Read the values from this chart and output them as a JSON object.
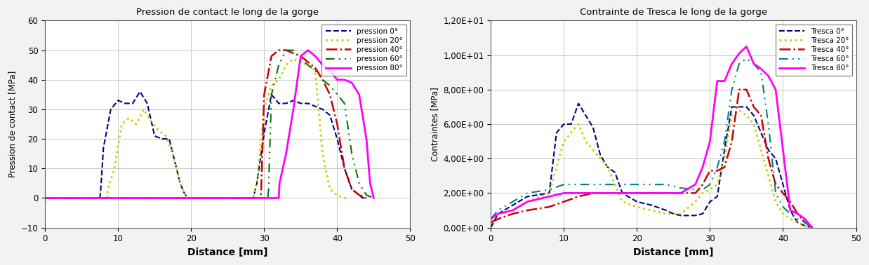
{
  "left_title": "Pression de contact le long de la gorge",
  "left_ylabel": "Pression de contact [MPa]",
  "left_xlabel": "Distance [mm]",
  "left_xlim": [
    0,
    50
  ],
  "left_ylim": [
    -10,
    60
  ],
  "left_yticks": [
    -10,
    0,
    10,
    20,
    30,
    40,
    50,
    60
  ],
  "left_xticks": [
    0,
    10,
    20,
    30,
    40,
    50
  ],
  "right_title": "Contrainte de Tresca le long de la gorge",
  "right_ylabel": "Contraintes [MPa]",
  "right_xlabel": "Distance [mm]",
  "right_xlim": [
    0,
    50
  ],
  "right_ylim": [
    0,
    12
  ],
  "right_yticks": [
    0,
    2,
    4,
    6,
    8,
    10,
    12
  ],
  "right_xticks": [
    0,
    10,
    20,
    30,
    40,
    50
  ],
  "pression_0": {
    "x": [
      0,
      7.5,
      7.6,
      8.0,
      9.0,
      10.0,
      11.0,
      12.0,
      13.0,
      14.0,
      15.0,
      16.0,
      17.0,
      17.5,
      18.0,
      18.5,
      19.0,
      19.5,
      28.5,
      29.0,
      30.0,
      31.0,
      32.0,
      33.0,
      34.0,
      35.0,
      36.0,
      37.0,
      38.0,
      39.0,
      40.0,
      41.0,
      42.0,
      43.0,
      43.5,
      44.0
    ],
    "y": [
      0,
      0,
      2,
      17,
      30,
      33,
      32,
      32,
      36,
      32,
      21,
      20,
      20,
      15,
      10,
      5,
      2,
      0,
      0,
      5,
      22,
      35,
      32,
      32,
      33,
      32,
      32,
      31,
      30,
      28,
      20,
      10,
      3,
      1,
      0,
      0
    ],
    "color": "#000080",
    "linestyle": "--",
    "linewidth": 1.5,
    "label": "pression 0°"
  },
  "pression_20": {
    "x": [
      0,
      8.5,
      8.6,
      9.5,
      10.5,
      11.5,
      12.5,
      13.5,
      14.5,
      15.5,
      16.5,
      17.5,
      18.0,
      18.5,
      19.0,
      19.5,
      28.5,
      29.0,
      30.0,
      31.0,
      32.0,
      33.0,
      34.0,
      35.0,
      36.0,
      37.0,
      38.0,
      39.0,
      40.0,
      40.5,
      41.0,
      41.5
    ],
    "y": [
      0,
      0,
      3,
      10,
      25,
      27,
      25,
      30,
      26,
      23,
      21,
      15,
      10,
      5,
      2,
      0,
      0,
      5,
      30,
      38,
      40,
      45,
      47,
      46,
      45,
      43,
      15,
      3,
      1,
      0.5,
      0,
      0
    ],
    "color": "#cccc00",
    "linestyle": ":",
    "linewidth": 2.0,
    "label": "pression 20°"
  },
  "pression_40": {
    "x": [
      0,
      29.5,
      29.6,
      30.0,
      31.0,
      32.0,
      33.0,
      34.0,
      35.0,
      36.0,
      37.0,
      38.0,
      39.0,
      40.0,
      41.0,
      42.0,
      43.0,
      43.5,
      44.0
    ],
    "y": [
      0,
      0,
      3,
      35,
      48,
      50,
      50,
      49,
      48,
      46,
      44,
      40,
      35,
      25,
      10,
      3,
      1,
      0.5,
      0
    ],
    "color": "#cc0000",
    "linestyle": "-.",
    "linewidth": 1.8,
    "label": "pression 40°"
  },
  "pression_60": {
    "x": [
      0,
      30.5,
      30.6,
      31.0,
      32.0,
      33.0,
      34.0,
      35.0,
      36.0,
      37.0,
      38.0,
      39.0,
      40.0,
      41.0,
      42.0,
      43.0,
      44.0,
      44.5,
      45.0
    ],
    "y": [
      0,
      0,
      3,
      35,
      45,
      50,
      50,
      47,
      45,
      43,
      40,
      38,
      35,
      32,
      15,
      5,
      1,
      0.5,
      0
    ],
    "color": "#007700",
    "linestyle": "--",
    "linewidth": 1.5,
    "label": "pression 60°",
    "dashes": [
      6,
      3,
      1,
      3,
      1,
      3
    ]
  },
  "pression_80": {
    "x": [
      0,
      32.0,
      32.1,
      33.0,
      34.0,
      35.0,
      36.0,
      37.0,
      38.0,
      39.0,
      40.0,
      41.0,
      42.0,
      43.0,
      44.0,
      44.5,
      45.0
    ],
    "y": [
      0,
      0,
      5,
      15,
      30,
      48,
      50,
      48,
      45,
      43,
      40,
      40,
      39,
      35,
      20,
      5,
      0
    ],
    "color": "#ff00ff",
    "linestyle": "-",
    "linewidth": 2.0,
    "label": "pression 80°"
  },
  "tresca_0": {
    "x": [
      0,
      1,
      3,
      5,
      8,
      9,
      10,
      11,
      12,
      13,
      14,
      15,
      16,
      17,
      18,
      20,
      22,
      24,
      25,
      26,
      27,
      28,
      29,
      30,
      31,
      32,
      33,
      34,
      35,
      36,
      37,
      38,
      39,
      40,
      41,
      42,
      43,
      44
    ],
    "y": [
      0,
      0.8,
      1.3,
      1.8,
      2.0,
      5.5,
      6.0,
      6.0,
      7.2,
      6.5,
      5.8,
      4.2,
      3.5,
      3.2,
      2.0,
      1.5,
      1.3,
      1.0,
      0.8,
      0.7,
      0.7,
      0.7,
      0.8,
      1.5,
      1.8,
      4.5,
      7.0,
      7.0,
      7.0,
      6.5,
      5.5,
      4.5,
      4.0,
      2.5,
      1.0,
      0.3,
      0.1,
      0
    ],
    "color": "#000080",
    "linestyle": "--",
    "linewidth": 1.5,
    "label": "Tresca 0°"
  },
  "tresca_20": {
    "x": [
      0,
      1,
      3,
      5,
      8,
      9,
      10,
      11,
      12,
      13,
      14,
      15,
      16,
      17,
      18,
      20,
      22,
      24,
      26,
      28,
      29,
      30,
      31,
      32,
      33,
      34,
      35,
      36,
      37,
      38,
      39,
      40,
      41,
      42,
      43,
      44
    ],
    "y": [
      0.5,
      0.8,
      1.0,
      1.5,
      2.0,
      3.5,
      5.0,
      5.5,
      6.0,
      5.0,
      4.5,
      4.0,
      3.5,
      2.5,
      1.5,
      1.2,
      1.0,
      0.8,
      0.8,
      1.5,
      2.0,
      2.2,
      2.5,
      4.0,
      6.5,
      6.8,
      6.5,
      6.0,
      4.5,
      3.0,
      1.5,
      0.8,
      0.5,
      0.3,
      0.1,
      0
    ],
    "color": "#cccc00",
    "linestyle": ":",
    "linewidth": 2.0,
    "label": "Tresca 20°"
  },
  "tresca_40": {
    "x": [
      0,
      1,
      3,
      5,
      8,
      10,
      12,
      14,
      16,
      18,
      20,
      22,
      24,
      26,
      28,
      29,
      30,
      31,
      32,
      33,
      34,
      35,
      36,
      37,
      38,
      39,
      40,
      41,
      42,
      43,
      44
    ],
    "y": [
      0.3,
      0.5,
      0.8,
      1.0,
      1.2,
      1.5,
      1.8,
      2.0,
      2.0,
      2.0,
      2.0,
      2.0,
      2.0,
      2.0,
      2.0,
      2.5,
      3.3,
      3.3,
      3.5,
      5.0,
      8.0,
      8.0,
      7.0,
      6.5,
      4.0,
      2.5,
      2.0,
      1.5,
      0.8,
      0.3,
      0
    ],
    "color": "#cc0000",
    "linestyle": "-.",
    "linewidth": 1.8,
    "label": "Tresca 40°"
  },
  "tresca_60": {
    "x": [
      0,
      1,
      3,
      5,
      8,
      10,
      12,
      14,
      16,
      18,
      20,
      22,
      24,
      26,
      28,
      29,
      30,
      31,
      32,
      33,
      34,
      35,
      36,
      37,
      38,
      39,
      40,
      41,
      42,
      43,
      44
    ],
    "y": [
      0.5,
      1.0,
      1.5,
      2.0,
      2.2,
      2.5,
      2.5,
      2.5,
      2.5,
      2.5,
      2.5,
      2.5,
      2.5,
      2.3,
      2.2,
      2.2,
      2.5,
      3.5,
      5.0,
      8.0,
      9.5,
      9.8,
      9.5,
      9.0,
      6.0,
      2.0,
      1.2,
      0.8,
      0.5,
      0.3,
      0
    ],
    "color": "#008080",
    "linestyle": "--",
    "linewidth": 1.5,
    "label": "Tresca 60°",
    "dashes": [
      6,
      3,
      1,
      3,
      1,
      3
    ]
  },
  "tresca_80": {
    "x": [
      0,
      1,
      3,
      5,
      8,
      10,
      12,
      14,
      16,
      18,
      20,
      22,
      24,
      26,
      28,
      29,
      30,
      31,
      32,
      33,
      34,
      35,
      36,
      37,
      38,
      39,
      40,
      41,
      42,
      43,
      44
    ],
    "y": [
      0.5,
      0.8,
      1.0,
      1.5,
      1.8,
      2.0,
      2.0,
      2.0,
      2.0,
      2.0,
      2.0,
      2.0,
      2.0,
      2.0,
      2.5,
      3.5,
      5.0,
      8.5,
      8.5,
      9.5,
      10.1,
      10.5,
      9.5,
      9.2,
      8.8,
      8.0,
      4.5,
      1.0,
      0.8,
      0.5,
      0
    ],
    "color": "#ff00ff",
    "linestyle": "-",
    "linewidth": 2.0,
    "label": "Tresca 80°"
  },
  "fig_bg": "#f2f2f2",
  "plot_bg": "#ffffff",
  "grid_color": "#808080"
}
